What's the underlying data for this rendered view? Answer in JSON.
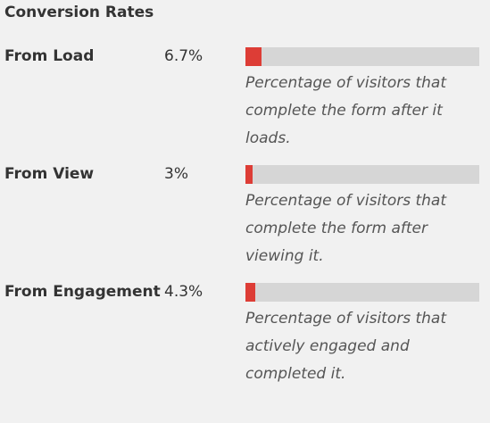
{
  "section": {
    "title": "Conversion Rates"
  },
  "metrics": [
    {
      "label": "From Load",
      "value": "6.7%",
      "fill_fraction": 0.067,
      "description": "Percentage of visitors that complete the form after it loads."
    },
    {
      "label": "From View",
      "value": "3%",
      "fill_fraction": 0.03,
      "description": "Percentage of visitors that complete the form after viewing it."
    },
    {
      "label": "From Engagement",
      "value": "4.3%",
      "fill_fraction": 0.043,
      "description": "Percentage of visitors that actively engaged and completed it."
    }
  ],
  "colors": {
    "bar_fill": "#dd3d36",
    "bar_track": "#d6d6d6",
    "background": "#f1f1f1"
  }
}
